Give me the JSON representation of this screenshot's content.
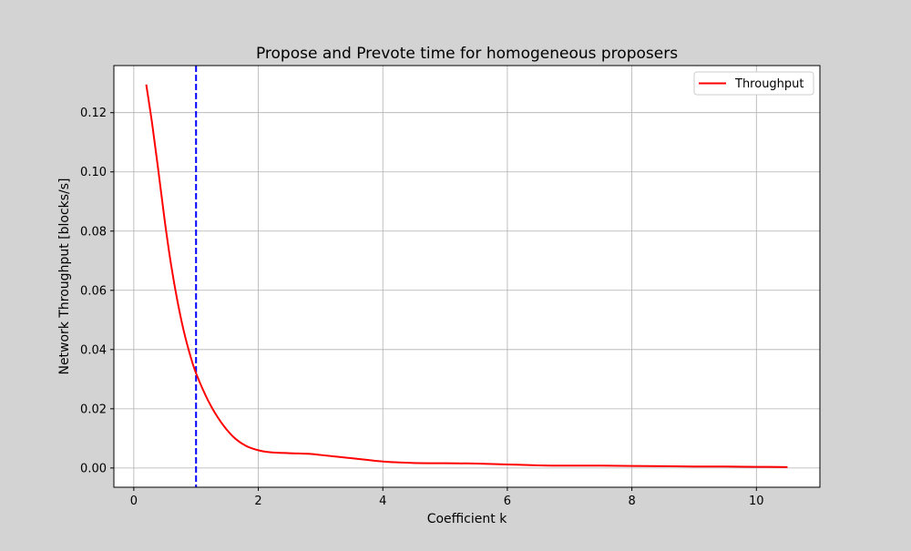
{
  "chart_data": {
    "type": "line",
    "title": "Propose and Prevote time for homogeneous proposers",
    "xlabel": "Coefficient k",
    "ylabel": "Network Throughput [blocks/s]",
    "xlim": [
      -0.32,
      11.02
    ],
    "ylim": [
      -0.0065,
      0.1359
    ],
    "xticks": [
      0,
      2,
      4,
      6,
      8,
      10
    ],
    "yticks": [
      0.0,
      0.02,
      0.04,
      0.06,
      0.08,
      0.1,
      0.12
    ],
    "xtick_labels": [
      "0",
      "2",
      "4",
      "6",
      "8",
      "10"
    ],
    "ytick_labels": [
      "0.00",
      "0.02",
      "0.04",
      "0.06",
      "0.08",
      "0.10",
      "0.12"
    ],
    "grid": true,
    "legend_position": "top-right",
    "series": [
      {
        "name": "Throughput",
        "color": "#ff0000",
        "x": [
          0.2,
          0.3,
          0.4,
          0.5,
          0.6,
          0.7,
          0.8,
          0.9,
          1.0,
          1.2,
          1.4,
          1.6,
          1.8,
          2.0,
          2.2,
          2.5,
          2.8,
          3.0,
          3.5,
          4.0,
          4.5,
          5.0,
          5.5,
          6.0,
          6.5,
          7.0,
          7.5,
          8.0,
          8.5,
          9.0,
          9.5,
          10.0,
          10.5
        ],
        "y": [
          0.1295,
          0.1155,
          0.0995,
          0.083,
          0.0685,
          0.0565,
          0.0465,
          0.0385,
          0.032,
          0.0225,
          0.0155,
          0.0105,
          0.0075,
          0.006,
          0.0053,
          0.005,
          0.0048,
          0.0044,
          0.0033,
          0.0022,
          0.0017,
          0.0016,
          0.0015,
          0.0012,
          0.0009,
          0.0008,
          0.0008,
          0.0007,
          0.0006,
          0.0005,
          0.0005,
          0.0004,
          0.0003
        ]
      }
    ],
    "reference_lines": [
      {
        "axis": "x",
        "value": 1.0,
        "color": "#0000ff",
        "style": "dashed"
      }
    ]
  }
}
